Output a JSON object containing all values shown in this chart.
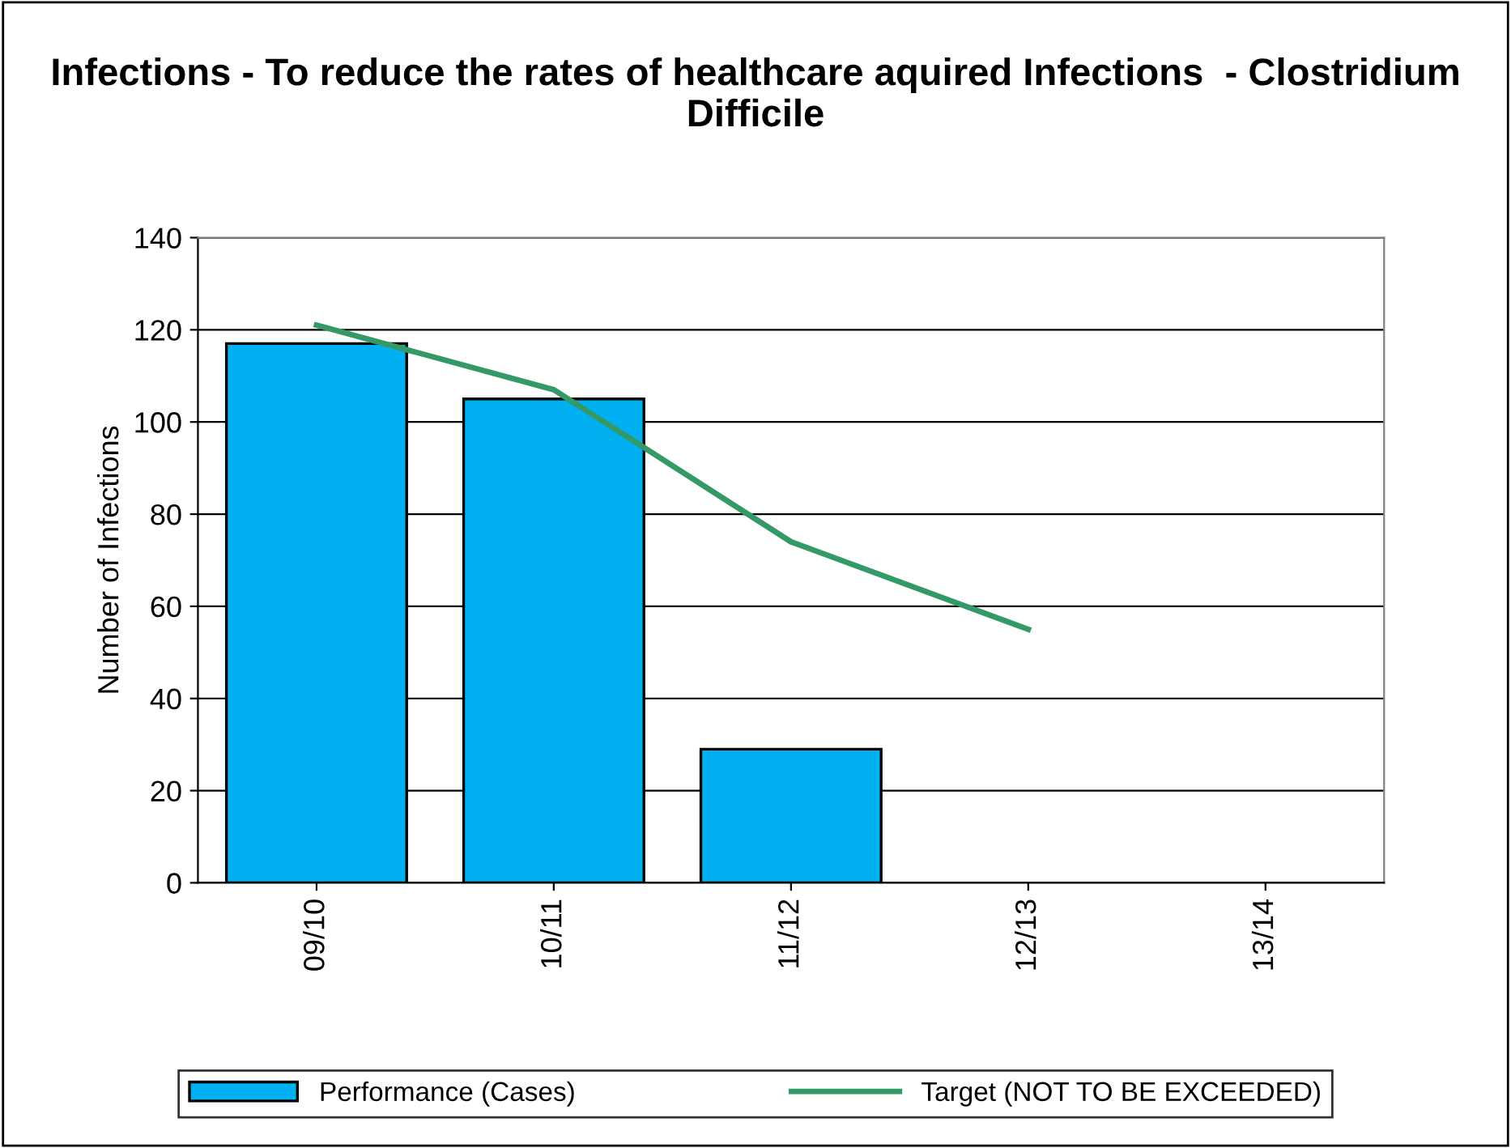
{
  "chart_data": {
    "type": "bar",
    "title": "Infections - To reduce the rates of healthcare aquired Infections  - Clostridium Difficile",
    "ylabel": "Number of Infections",
    "categories": [
      "09/10",
      "10/11",
      "11/12",
      "12/13",
      "13/14"
    ],
    "series": [
      {
        "name": "Performance (Cases)",
        "color": "#00b0f0",
        "values": [
          117,
          105,
          29,
          null,
          null
        ]
      },
      {
        "name": "Target (NOT TO BE EXCEEDED)",
        "type": "line",
        "color": "#339966",
        "values": [
          121,
          107,
          74,
          55,
          null
        ]
      }
    ],
    "ylim": [
      0,
      140
    ],
    "yticks": [
      0,
      20,
      40,
      60,
      80,
      100,
      120,
      140
    ],
    "grid": "y",
    "legend": "bottom",
    "marker": "none",
    "line_style": "solid"
  }
}
